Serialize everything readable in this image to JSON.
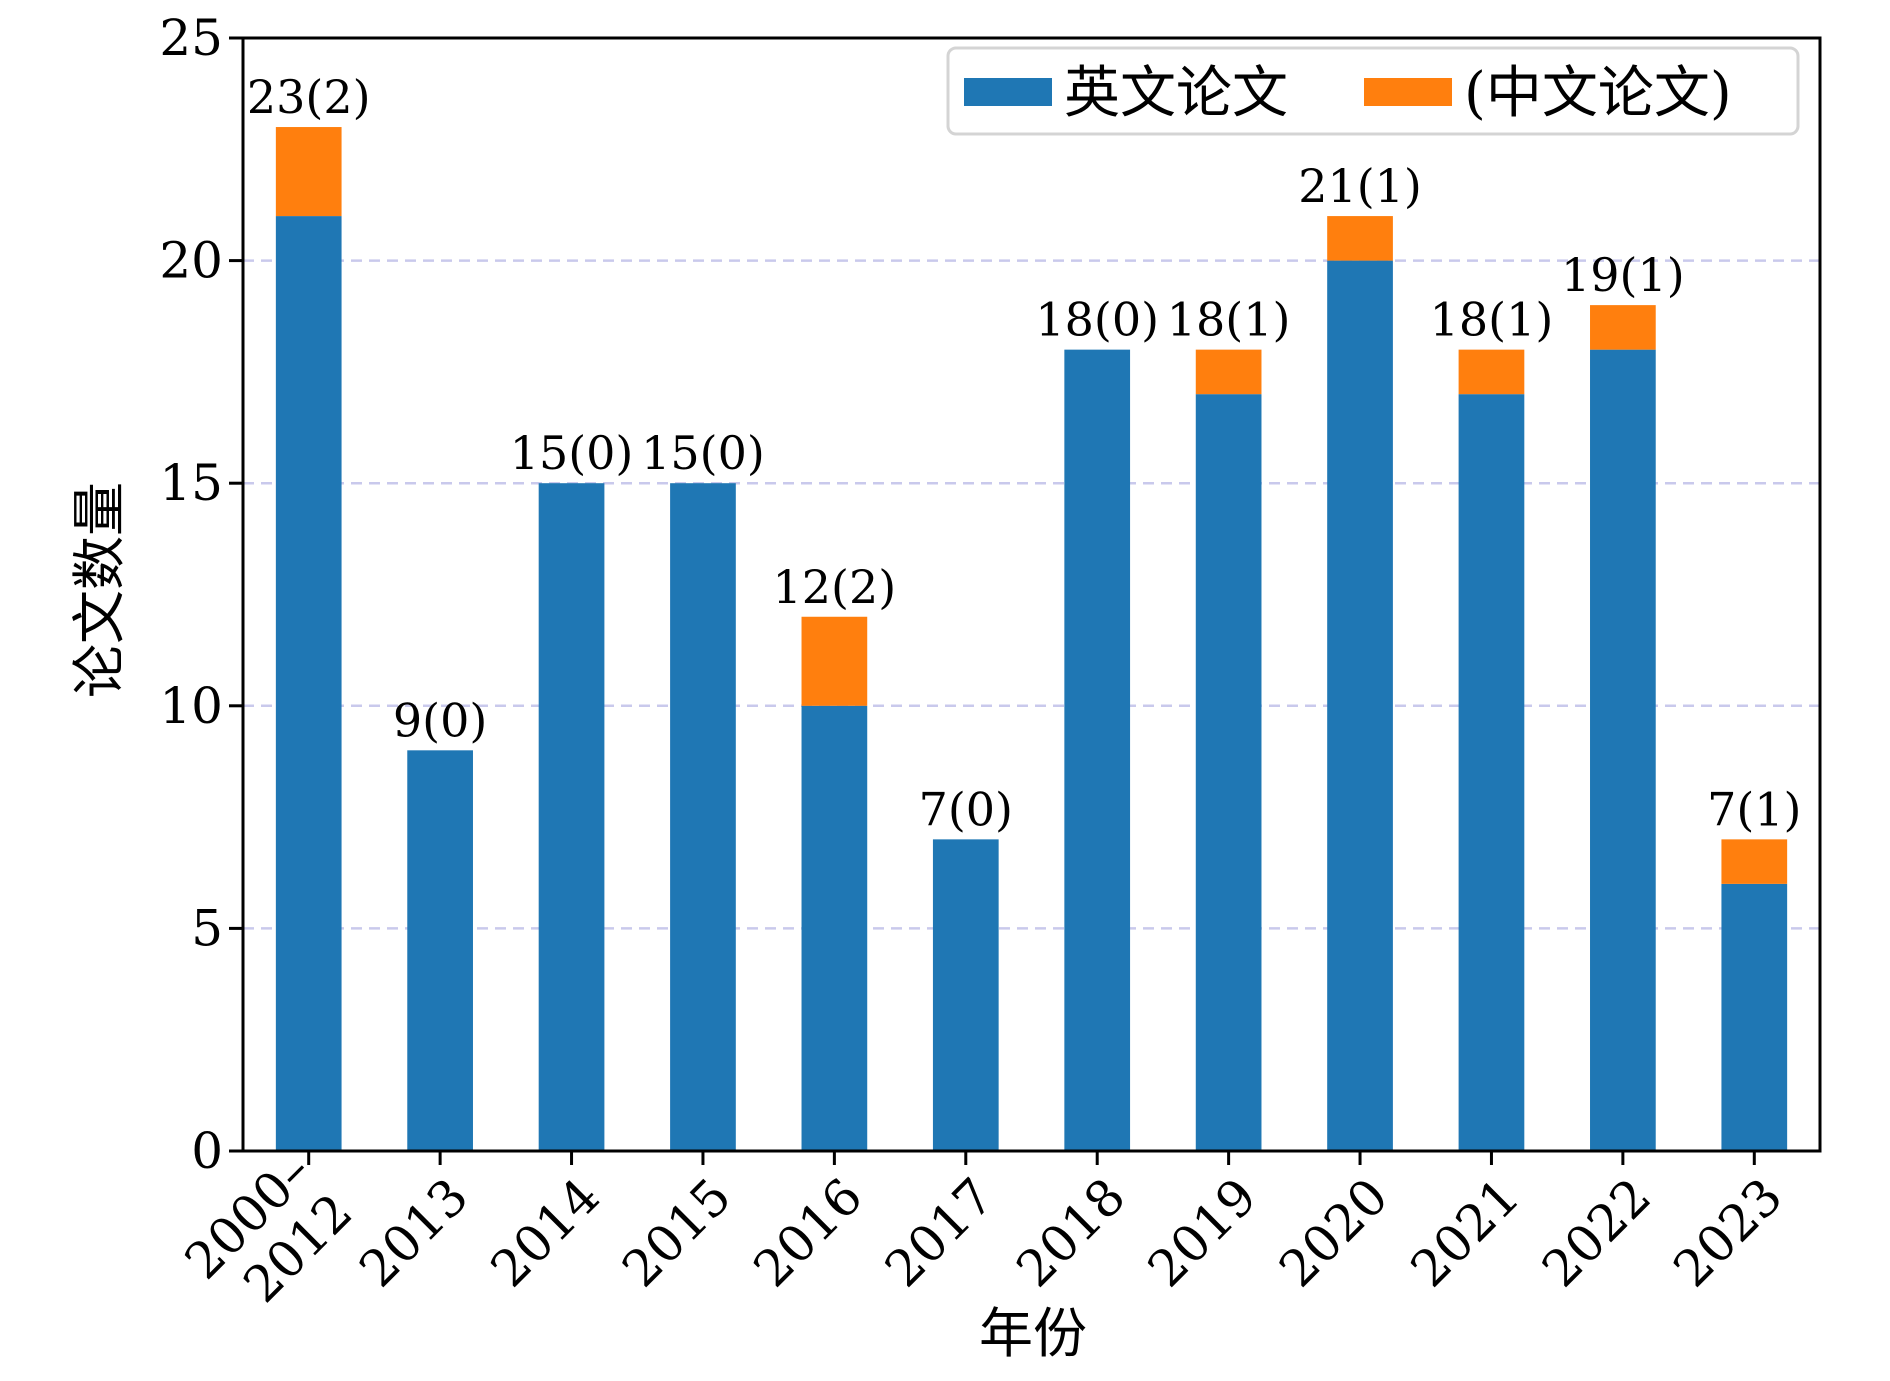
{
  "chart_data": {
    "type": "bar",
    "stacked": true,
    "title": "",
    "xlabel": "年份",
    "ylabel": "论文数量",
    "ylim": [
      0,
      25
    ],
    "yticks": [
      "0",
      "5",
      "10",
      "15",
      "20",
      "25"
    ],
    "grid": "horizontal dashed",
    "legend_position": "top-right",
    "categories": [
      "2000–\n2012",
      "2013",
      "2014",
      "2015",
      "2016",
      "2017",
      "2018",
      "2019",
      "2020",
      "2021",
      "2022",
      "2023"
    ],
    "series": [
      {
        "name": "英文论文",
        "color": "#1f77b4",
        "values": [
          21,
          9,
          15,
          15,
          10,
          7,
          18,
          17,
          20,
          17,
          18,
          6
        ]
      },
      {
        "name": "(中文论文)",
        "color": "#ff7f0e",
        "values": [
          2,
          0,
          0,
          0,
          2,
          0,
          0,
          1,
          1,
          1,
          1,
          1
        ]
      }
    ],
    "data_labels": [
      "23(2)",
      "9(0)",
      "15(0)",
      "15(0)",
      "12(2)",
      "7(0)",
      "18(0)",
      "18(1)",
      "21(1)",
      "18(1)",
      "19(1)",
      "7(1)"
    ]
  }
}
